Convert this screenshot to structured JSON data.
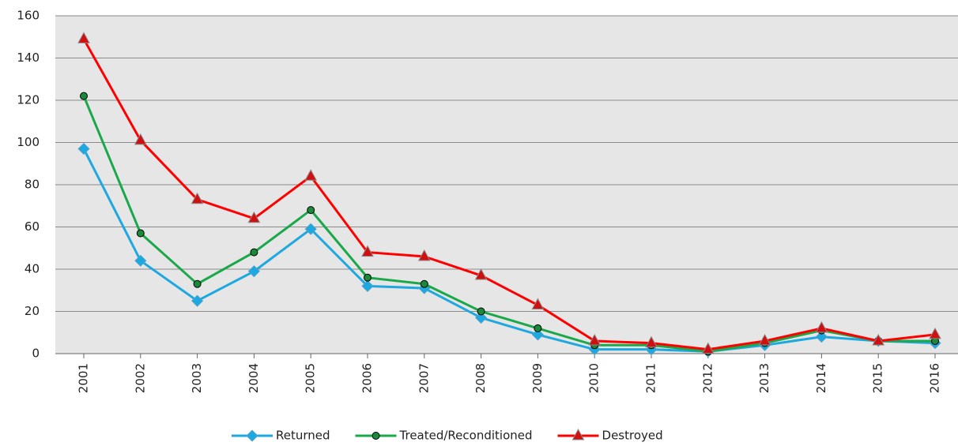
{
  "chart_data": {
    "type": "line",
    "categories": [
      "2001",
      "2002",
      "2003",
      "2004",
      "2005",
      "2006",
      "2007",
      "2008",
      "2009",
      "2010",
      "2011",
      "2012",
      "2013",
      "2014",
      "2015",
      "2016"
    ],
    "series": [
      {
        "name": "Returned",
        "color": "#1ea8e0",
        "marker": "diamond",
        "values": [
          97,
          44,
          25,
          39,
          59,
          32,
          31,
          17,
          9,
          2,
          2,
          1,
          4,
          8,
          6,
          5
        ]
      },
      {
        "name": "Treated/Reconditioned",
        "color": "#1aa84a",
        "marker": "circle",
        "values": [
          122,
          57,
          33,
          48,
          68,
          36,
          33,
          20,
          12,
          4,
          4,
          1,
          5,
          11,
          6,
          6
        ]
      },
      {
        "name": "Destroyed",
        "color": "#ff0000",
        "marker": "triangle",
        "values": [
          149,
          101,
          73,
          64,
          84,
          48,
          46,
          37,
          23,
          6,
          5,
          2,
          6,
          12,
          6,
          9
        ]
      }
    ],
    "ylim": [
      0,
      160
    ],
    "yticks": [
      0,
      20,
      40,
      60,
      80,
      100,
      120,
      140,
      160
    ],
    "grid": true,
    "legend": "bottom"
  }
}
